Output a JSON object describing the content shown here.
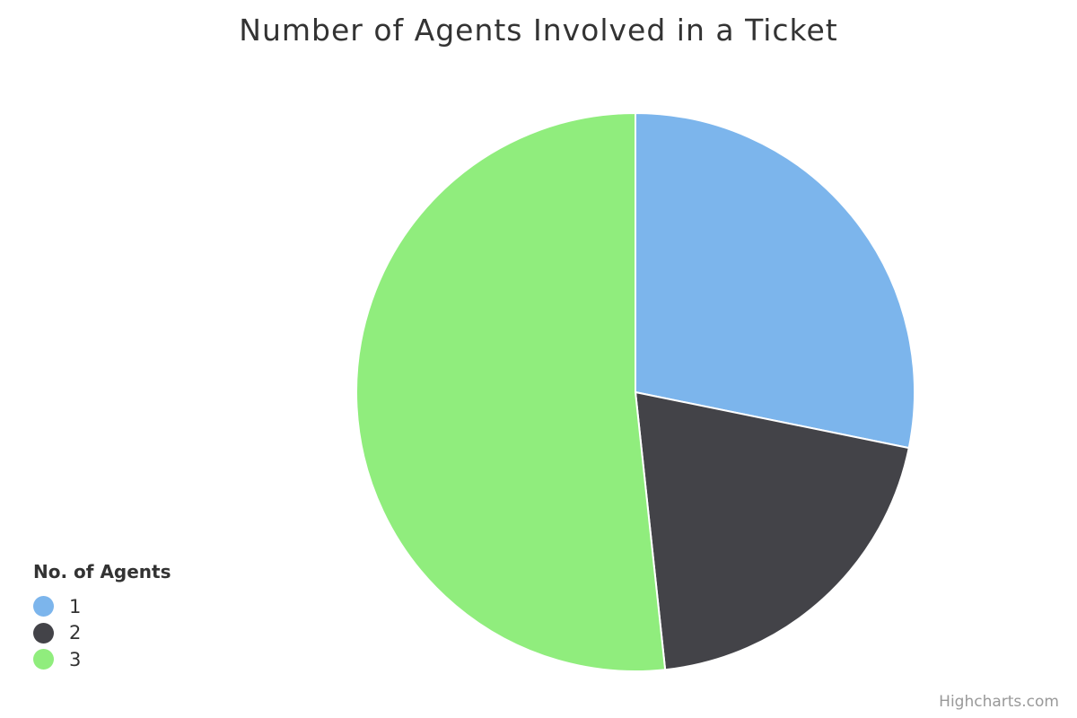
{
  "chart_data": {
    "type": "pie",
    "title": "Number of Agents Involved in a Ticket",
    "legend_title": "No. of Agents",
    "legend_position": "bottom-left",
    "categories": [
      "1",
      "2",
      "3"
    ],
    "values": [
      28.2,
      20.1,
      51.7
    ],
    "colors": [
      "#7cb5ec",
      "#434348",
      "#90ed7d"
    ]
  },
  "credits": "Highcharts.com"
}
